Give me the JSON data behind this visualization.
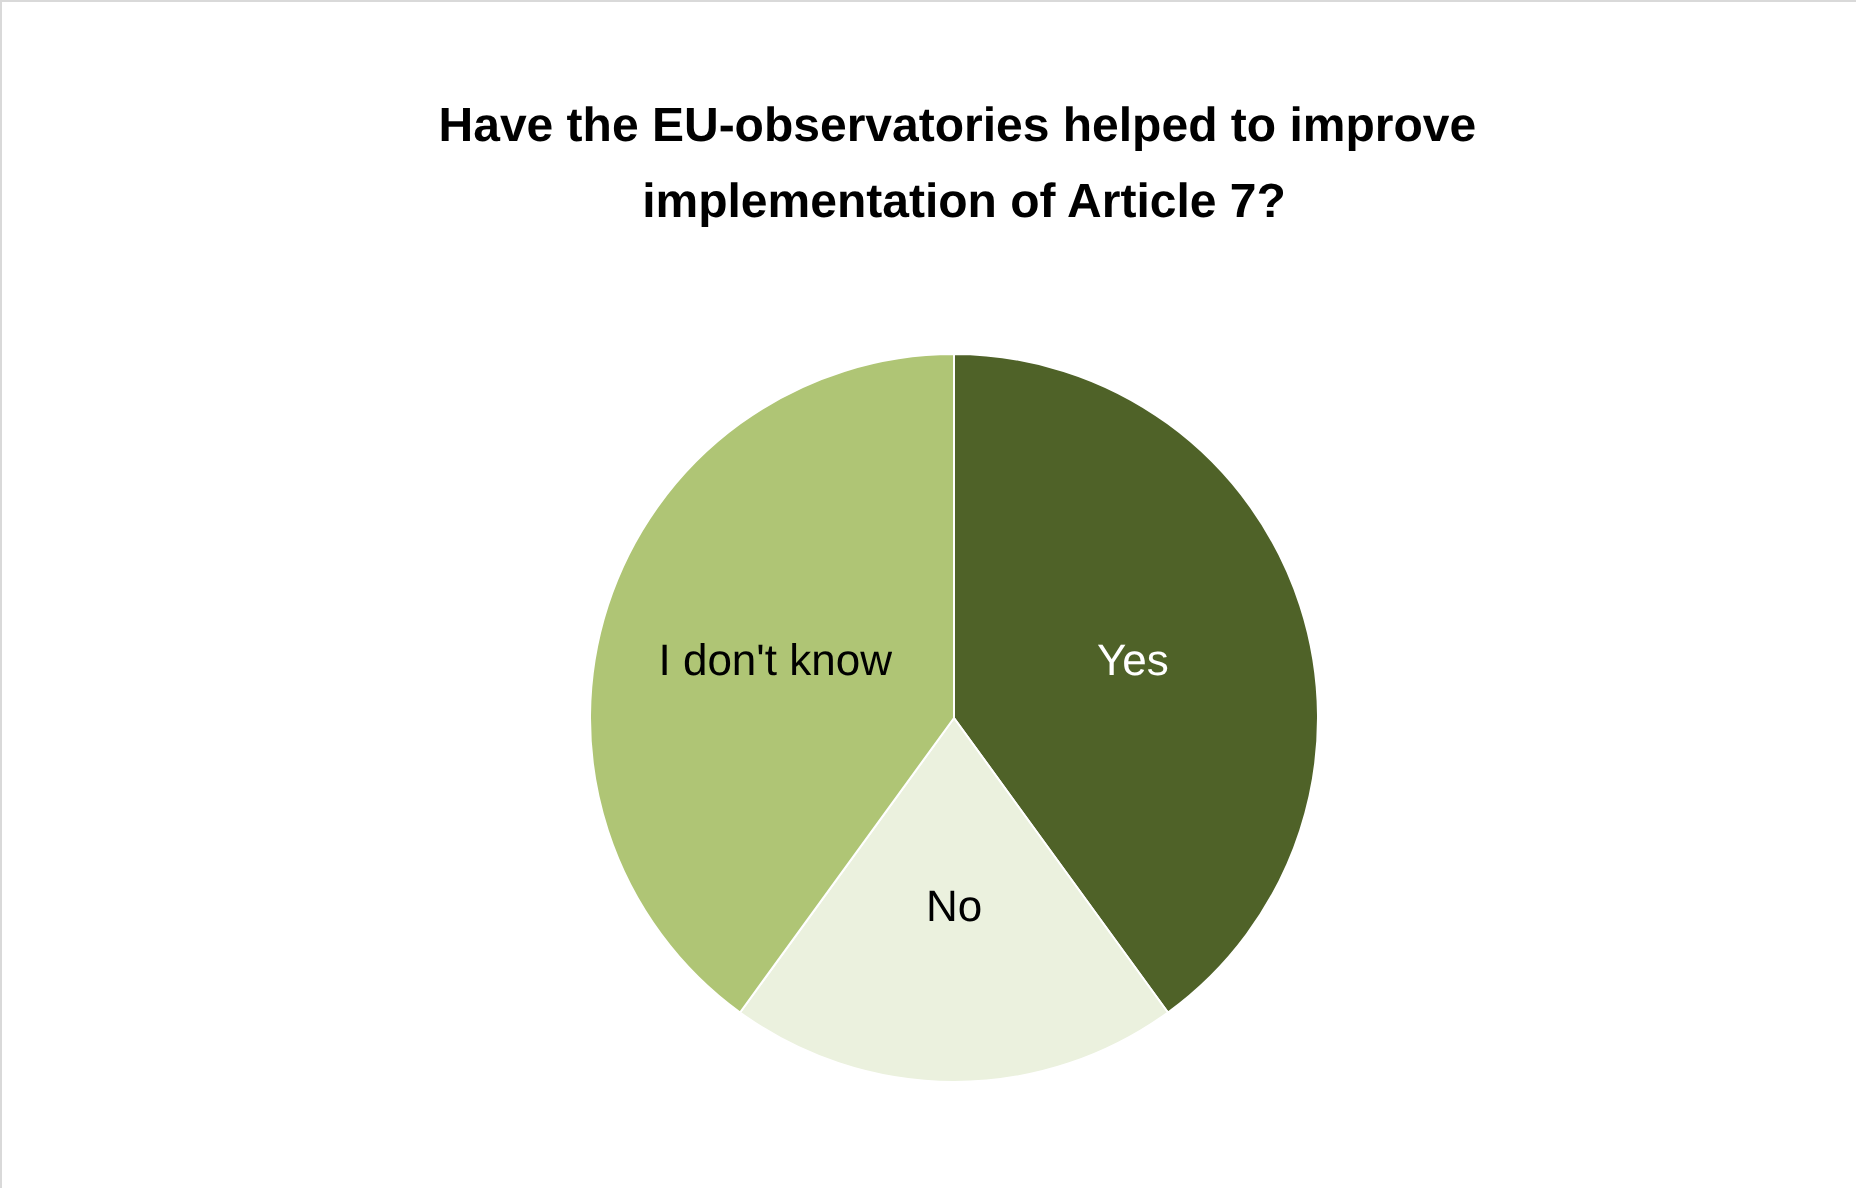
{
  "chart_data": {
    "type": "pie",
    "title": "Have the EU-observatories helped to improve implementation of Article 7?",
    "categories": [
      "Yes",
      "No",
      "I don't know"
    ],
    "values": [
      40,
      20,
      40
    ],
    "colors": [
      "#4f6228",
      "#ebf1de",
      "#afc575"
    ],
    "legend": false
  }
}
